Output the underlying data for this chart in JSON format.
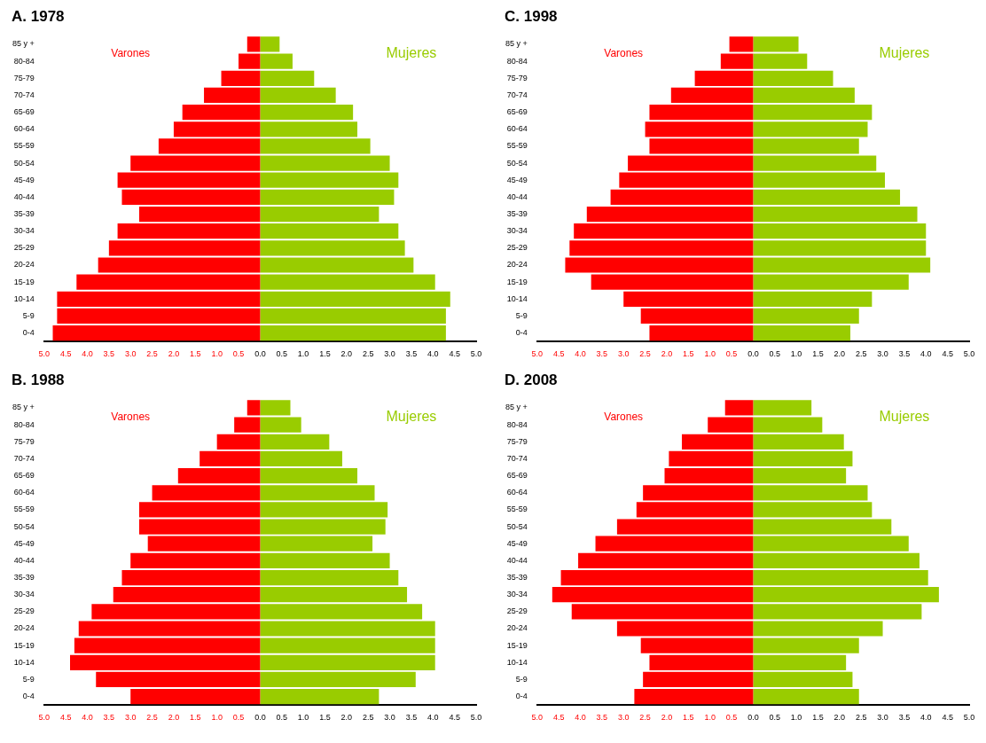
{
  "chart_data": [
    {
      "type": "bar",
      "title": "A. 1978",
      "orientation": "horizontal",
      "stacked": true,
      "legend": false,
      "grid": false,
      "categories": [
        "85 y +",
        "80-84",
        "75-79",
        "70-74",
        "65-69",
        "60-64",
        "55-59",
        "50-54",
        "45-49",
        "40-44",
        "35-39",
        "30-34",
        "25-29",
        "20-24",
        "15-19",
        "10-14",
        "5-9",
        "0-4"
      ],
      "series": [
        {
          "name": "Varones",
          "color": "#ff0000",
          "values": [
            -0.3,
            -0.5,
            -0.9,
            -1.3,
            -1.8,
            -2.0,
            -2.35,
            -3.0,
            -3.3,
            -3.2,
            -2.8,
            -3.3,
            -3.5,
            -3.75,
            -4.25,
            -4.7,
            -4.7,
            -4.8
          ]
        },
        {
          "name": "Mujeres",
          "color": "#99cc00",
          "values": [
            0.45,
            0.75,
            1.25,
            1.75,
            2.15,
            2.25,
            2.55,
            3.0,
            3.2,
            3.1,
            2.75,
            3.2,
            3.35,
            3.55,
            4.05,
            4.4,
            4.3,
            4.3
          ]
        }
      ],
      "xlim": [
        -5,
        5
      ],
      "xticks": [
        {
          "value": -5,
          "label": "5.0"
        },
        {
          "value": -4.5,
          "label": "4.5"
        },
        {
          "value": -4,
          "label": "4.0"
        },
        {
          "value": -3.5,
          "label": "3.5"
        },
        {
          "value": -3,
          "label": "3.0"
        },
        {
          "value": -2.5,
          "label": "2.5"
        },
        {
          "value": -2,
          "label": "2.0"
        },
        {
          "value": -1.5,
          "label": "1.5"
        },
        {
          "value": -1,
          "label": "1.0"
        },
        {
          "value": -0.5,
          "label": "0.5"
        },
        {
          "value": 0,
          "label": "0.0"
        },
        {
          "value": 0.5,
          "label": "0.5"
        },
        {
          "value": 1,
          "label": "1.0"
        },
        {
          "value": 1.5,
          "label": "1.5"
        },
        {
          "value": 2,
          "label": "2.0"
        },
        {
          "value": 2.5,
          "label": "2.5"
        },
        {
          "value": 3,
          "label": "3.0"
        },
        {
          "value": 3.5,
          "label": "3.5"
        },
        {
          "value": 4,
          "label": "4.0"
        },
        {
          "value": 4.5,
          "label": "4.5"
        },
        {
          "value": 5,
          "label": "5.0"
        }
      ]
    },
    {
      "type": "bar",
      "title": "C. 1998",
      "orientation": "horizontal",
      "stacked": true,
      "legend": false,
      "grid": false,
      "categories": [
        "85 y +",
        "80-84",
        "75-79",
        "70-74",
        "65-69",
        "60-64",
        "55-59",
        "50-54",
        "45-49",
        "40-44",
        "35-39",
        "30-34",
        "25-29",
        "20-24",
        "15-19",
        "10-14",
        "5-9",
        "0-4"
      ],
      "series": [
        {
          "name": "Varones",
          "color": "#ff0000",
          "values": [
            -0.55,
            -0.75,
            -1.35,
            -1.9,
            -2.4,
            -2.5,
            -2.4,
            -2.9,
            -3.1,
            -3.3,
            -3.85,
            -4.15,
            -4.25,
            -4.35,
            -3.75,
            -3.0,
            -2.6,
            -2.4
          ]
        },
        {
          "name": "Mujeres",
          "color": "#99cc00",
          "values": [
            1.05,
            1.25,
            1.85,
            2.35,
            2.75,
            2.65,
            2.45,
            2.85,
            3.05,
            3.4,
            3.8,
            4.0,
            4.0,
            4.1,
            3.6,
            2.75,
            2.45,
            2.25
          ]
        }
      ],
      "xlim": [
        -5,
        5
      ],
      "xticks": [
        {
          "value": -5,
          "label": "5.0"
        },
        {
          "value": -4.5,
          "label": "4.5"
        },
        {
          "value": -4,
          "label": "4.0"
        },
        {
          "value": -3.5,
          "label": "3.5"
        },
        {
          "value": -3,
          "label": "3.0"
        },
        {
          "value": -2.5,
          "label": "2.5"
        },
        {
          "value": -2,
          "label": "2.0"
        },
        {
          "value": -1.5,
          "label": "1.5"
        },
        {
          "value": -1,
          "label": "1.0"
        },
        {
          "value": -0.5,
          "label": "0.5"
        },
        {
          "value": 0,
          "label": "0.0"
        },
        {
          "value": 0.5,
          "label": "0.5"
        },
        {
          "value": 1,
          "label": "1.0"
        },
        {
          "value": 1.5,
          "label": "1.5"
        },
        {
          "value": 2,
          "label": "2.0"
        },
        {
          "value": 2.5,
          "label": "2.5"
        },
        {
          "value": 3,
          "label": "3.0"
        },
        {
          "value": 3.5,
          "label": "3.5"
        },
        {
          "value": 4,
          "label": "4.0"
        },
        {
          "value": 4.5,
          "label": "4.5"
        },
        {
          "value": 5,
          "label": "5.0"
        }
      ]
    },
    {
      "type": "bar",
      "title": "B. 1988",
      "orientation": "horizontal",
      "stacked": true,
      "legend": false,
      "grid": false,
      "categories": [
        "85 y +",
        "80-84",
        "75-79",
        "70-74",
        "65-69",
        "60-64",
        "55-59",
        "50-54",
        "45-49",
        "40-44",
        "35-39",
        "30-34",
        "25-29",
        "20-24",
        "15-19",
        "10-14",
        "5-9",
        "0-4"
      ],
      "series": [
        {
          "name": "Varones",
          "color": "#ff0000",
          "values": [
            -0.3,
            -0.6,
            -1.0,
            -1.4,
            -1.9,
            -2.5,
            -2.8,
            -2.8,
            -2.6,
            -3.0,
            -3.2,
            -3.4,
            -3.9,
            -4.2,
            -4.3,
            -4.4,
            -3.8,
            -3.0
          ]
        },
        {
          "name": "Mujeres",
          "color": "#99cc00",
          "values": [
            0.7,
            0.95,
            1.6,
            1.9,
            2.25,
            2.65,
            2.95,
            2.9,
            2.6,
            3.0,
            3.2,
            3.4,
            3.75,
            4.05,
            4.05,
            4.05,
            3.6,
            2.75
          ]
        }
      ],
      "xlim": [
        -5,
        5
      ],
      "xticks": [
        {
          "value": -5,
          "label": "5.0"
        },
        {
          "value": -4.5,
          "label": "4.5"
        },
        {
          "value": -4,
          "label": "4.0"
        },
        {
          "value": -3.5,
          "label": "3.5"
        },
        {
          "value": -3,
          "label": "3.0"
        },
        {
          "value": -2.5,
          "label": "2.5"
        },
        {
          "value": -2,
          "label": "2.0"
        },
        {
          "value": -1.5,
          "label": "1.5"
        },
        {
          "value": -1,
          "label": "1.0"
        },
        {
          "value": -0.5,
          "label": "0.5"
        },
        {
          "value": 0,
          "label": "0.0"
        },
        {
          "value": 0.5,
          "label": "0.5"
        },
        {
          "value": 1,
          "label": "1.0"
        },
        {
          "value": 1.5,
          "label": "1.5"
        },
        {
          "value": 2,
          "label": "2.0"
        },
        {
          "value": 2.5,
          "label": "2.5"
        },
        {
          "value": 3,
          "label": "3.0"
        },
        {
          "value": 3.5,
          "label": "3.5"
        },
        {
          "value": 4,
          "label": "4.0"
        },
        {
          "value": 4.5,
          "label": "4.5"
        },
        {
          "value": 5,
          "label": "5.0"
        }
      ]
    },
    {
      "type": "bar",
      "title": "D. 2008",
      "orientation": "horizontal",
      "stacked": true,
      "legend": false,
      "grid": false,
      "categories": [
        "85 y +",
        "80-84",
        "75-79",
        "70-74",
        "65-69",
        "60-64",
        "55-59",
        "50-54",
        "45-49",
        "40-44",
        "35-39",
        "30-34",
        "25-29",
        "20-24",
        "15-19",
        "10-14",
        "5-9",
        "0-4"
      ],
      "series": [
        {
          "name": "Varones",
          "color": "#ff0000",
          "values": [
            -0.65,
            -1.05,
            -1.65,
            -1.95,
            -2.05,
            -2.55,
            -2.7,
            -3.15,
            -3.65,
            -4.05,
            -4.45,
            -4.65,
            -4.2,
            -3.15,
            -2.6,
            -2.4,
            -2.55,
            -2.75
          ]
        },
        {
          "name": "Mujeres",
          "color": "#99cc00",
          "values": [
            1.35,
            1.6,
            2.1,
            2.3,
            2.15,
            2.65,
            2.75,
            3.2,
            3.6,
            3.85,
            4.05,
            4.3,
            3.9,
            3.0,
            2.45,
            2.15,
            2.3,
            2.45
          ]
        }
      ],
      "xlim": [
        -5,
        5
      ],
      "xticks": [
        {
          "value": -5,
          "label": "5.0"
        },
        {
          "value": -4.5,
          "label": "4.5"
        },
        {
          "value": -4,
          "label": "4.0"
        },
        {
          "value": -3.5,
          "label": "3.5"
        },
        {
          "value": -3,
          "label": "3.0"
        },
        {
          "value": -2.5,
          "label": "2.5"
        },
        {
          "value": -2,
          "label": "2.0"
        },
        {
          "value": -1.5,
          "label": "1.5"
        },
        {
          "value": -1,
          "label": "1.0"
        },
        {
          "value": -0.5,
          "label": "0.5"
        },
        {
          "value": 0,
          "label": "0.0"
        },
        {
          "value": 0.5,
          "label": "0.5"
        },
        {
          "value": 1,
          "label": "1.0"
        },
        {
          "value": 1.5,
          "label": "1.5"
        },
        {
          "value": 2,
          "label": "2.0"
        },
        {
          "value": 2.5,
          "label": "2.5"
        },
        {
          "value": 3,
          "label": "3.0"
        },
        {
          "value": 3.5,
          "label": "3.5"
        },
        {
          "value": 4,
          "label": "4.0"
        },
        {
          "value": 4.5,
          "label": "4.5"
        },
        {
          "value": 5,
          "label": "5.0"
        }
      ]
    }
  ]
}
